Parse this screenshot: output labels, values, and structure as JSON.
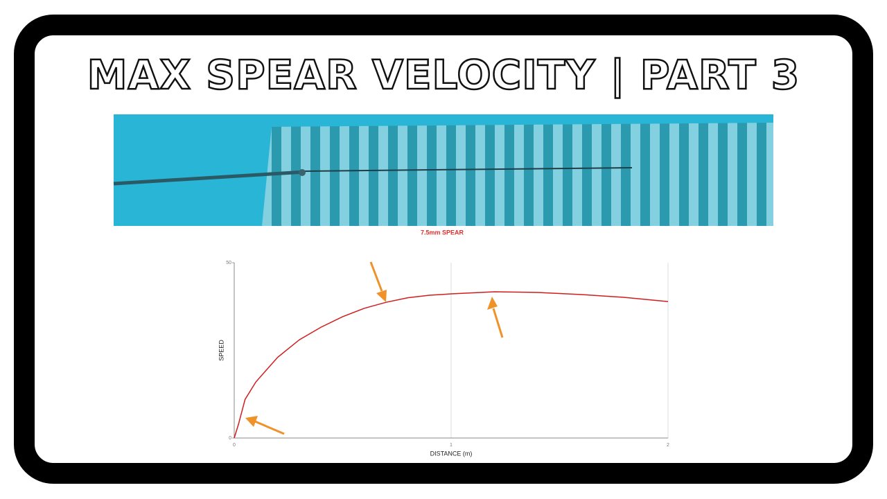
{
  "title": "MAX SPEAR VELOCITY | PART 3",
  "image_caption": "7.5mm SPEAR",
  "chart_data": {
    "type": "line",
    "x_label": "DISTANCE (m)",
    "y_label": "SPEED",
    "x": [
      0,
      0.02,
      0.05,
      0.1,
      0.2,
      0.3,
      0.4,
      0.5,
      0.6,
      0.7,
      0.8,
      0.9,
      1.0,
      1.2,
      1.4,
      1.6,
      1.8,
      2.0
    ],
    "values": [
      0,
      4,
      11,
      16,
      23,
      28,
      31.6,
      34.6,
      37,
      38.7,
      40,
      40.7,
      41.1,
      41.7,
      41.5,
      40.9,
      40.1,
      38.9
    ],
    "color": "#d01c1c",
    "xlim": [
      0,
      2
    ],
    "xticks": [
      0,
      1,
      2
    ],
    "ylim": [
      0,
      50
    ],
    "yticks": [
      0,
      50
    ],
    "grid": true
  }
}
